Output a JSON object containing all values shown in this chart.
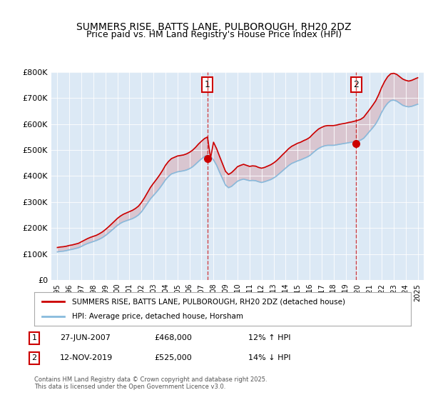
{
  "title": "SUMMERS RISE, BATTS LANE, PULBOROUGH, RH20 2DZ",
  "subtitle": "Price paid vs. HM Land Registry's House Price Index (HPI)",
  "bg_color": "#dce9f5",
  "plot_bg_color": "#dce9f5",
  "line1_color": "#cc0000",
  "line2_color": "#88bbdd",
  "ylim": [
    0,
    800000
  ],
  "yticks": [
    0,
    100000,
    200000,
    300000,
    400000,
    500000,
    600000,
    700000,
    800000
  ],
  "ytick_labels": [
    "£0",
    "£100K",
    "£200K",
    "£300K",
    "£400K",
    "£500K",
    "£600K",
    "£700K",
    "£800K"
  ],
  "xlabel_years": [
    "1995",
    "1996",
    "1997",
    "1998",
    "1999",
    "2000",
    "2001",
    "2002",
    "2003",
    "2004",
    "2005",
    "2006",
    "2007",
    "2008",
    "2009",
    "2010",
    "2011",
    "2012",
    "2013",
    "2014",
    "2015",
    "2016",
    "2017",
    "2018",
    "2019",
    "2020",
    "2021",
    "2022",
    "2023",
    "2024",
    "2025"
  ],
  "sale1_year": 2007.49,
  "sale1_price": 468000,
  "sale1_label": "1",
  "sale1_date": "27-JUN-2007",
  "sale1_hpi": "12% ↑ HPI",
  "sale2_year": 2019.87,
  "sale2_price": 525000,
  "sale2_label": "2",
  "sale2_date": "12-NOV-2019",
  "sale2_hpi": "14% ↓ HPI",
  "legend_line1": "SUMMERS RISE, BATTS LANE, PULBOROUGH, RH20 2DZ (detached house)",
  "legend_line2": "HPI: Average price, detached house, Horsham",
  "footer": "Contains HM Land Registry data © Crown copyright and database right 2025.\nThis data is licensed under the Open Government Licence v3.0.",
  "hpi_data": {
    "years": [
      1995.0,
      1995.25,
      1995.5,
      1995.75,
      1996.0,
      1996.25,
      1996.5,
      1996.75,
      1997.0,
      1997.25,
      1997.5,
      1997.75,
      1998.0,
      1998.25,
      1998.5,
      1998.75,
      1999.0,
      1999.25,
      1999.5,
      1999.75,
      2000.0,
      2000.25,
      2000.5,
      2000.75,
      2001.0,
      2001.25,
      2001.5,
      2001.75,
      2002.0,
      2002.25,
      2002.5,
      2002.75,
      2003.0,
      2003.25,
      2003.5,
      2003.75,
      2004.0,
      2004.25,
      2004.5,
      2004.75,
      2005.0,
      2005.25,
      2005.5,
      2005.75,
      2006.0,
      2006.25,
      2006.5,
      2006.75,
      2007.0,
      2007.25,
      2007.5,
      2007.75,
      2008.0,
      2008.25,
      2008.5,
      2008.75,
      2009.0,
      2009.25,
      2009.5,
      2009.75,
      2010.0,
      2010.25,
      2010.5,
      2010.75,
      2011.0,
      2011.25,
      2011.5,
      2011.75,
      2012.0,
      2012.25,
      2012.5,
      2012.75,
      2013.0,
      2013.25,
      2013.5,
      2013.75,
      2014.0,
      2014.25,
      2014.5,
      2014.75,
      2015.0,
      2015.25,
      2015.5,
      2015.75,
      2016.0,
      2016.25,
      2016.5,
      2016.75,
      2017.0,
      2017.25,
      2017.5,
      2017.75,
      2018.0,
      2018.25,
      2018.5,
      2018.75,
      2019.0,
      2019.25,
      2019.5,
      2019.75,
      2020.0,
      2020.25,
      2020.5,
      2020.75,
      2021.0,
      2021.25,
      2021.5,
      2021.75,
      2022.0,
      2022.25,
      2022.5,
      2022.75,
      2023.0,
      2023.25,
      2023.5,
      2023.75,
      2024.0,
      2024.25,
      2024.5,
      2024.75,
      2025.0
    ],
    "hpi_values": [
      108000,
      110000,
      111000,
      113000,
      116000,
      118000,
      121000,
      124000,
      129000,
      135000,
      140000,
      144000,
      148000,
      152000,
      157000,
      163000,
      171000,
      180000,
      190000,
      200000,
      210000,
      218000,
      224000,
      228000,
      232000,
      236000,
      242000,
      250000,
      262000,
      278000,
      295000,
      312000,
      325000,
      338000,
      352000,
      368000,
      385000,
      398000,
      408000,
      412000,
      416000,
      418000,
      420000,
      423000,
      428000,
      435000,
      445000,
      456000,
      466000,
      475000,
      480000,
      475000,
      462000,
      442000,
      415000,
      390000,
      365000,
      355000,
      360000,
      370000,
      380000,
      385000,
      388000,
      385000,
      382000,
      383000,
      382000,
      378000,
      375000,
      378000,
      382000,
      386000,
      392000,
      400000,
      410000,
      420000,
      430000,
      440000,
      448000,
      453000,
      458000,
      462000,
      467000,
      472000,
      478000,
      488000,
      498000,
      506000,
      512000,
      516000,
      518000,
      518000,
      518000,
      520000,
      522000,
      524000,
      526000,
      528000,
      530000,
      532000,
      534000,
      538000,
      545000,
      558000,
      572000,
      585000,
      600000,
      620000,
      645000,
      665000,
      680000,
      690000,
      692000,
      688000,
      680000,
      672000,
      668000,
      666000,
      668000,
      672000,
      676000
    ],
    "property_values": [
      125000,
      127000,
      128000,
      130000,
      133000,
      135000,
      138000,
      141000,
      147000,
      153000,
      159000,
      164000,
      168000,
      172000,
      178000,
      185000,
      194000,
      204000,
      215000,
      226000,
      237000,
      246000,
      253000,
      258000,
      263000,
      268000,
      275000,
      284000,
      298000,
      316000,
      336000,
      356000,
      372000,
      387000,
      403000,
      421000,
      441000,
      456000,
      467000,
      472000,
      477000,
      479000,
      481000,
      485000,
      491000,
      499000,
      510000,
      523000,
      534000,
      544000,
      550000,
      468000,
      530000,
      506000,
      476000,
      447000,
      418000,
      406000,
      413000,
      424000,
      436000,
      441000,
      445000,
      441000,
      437000,
      439000,
      438000,
      433000,
      430000,
      433000,
      438000,
      443000,
      450000,
      459000,
      470000,
      482000,
      493000,
      505000,
      514000,
      520000,
      526000,
      530000,
      536000,
      541000,
      548000,
      560000,
      571000,
      581000,
      587000,
      592000,
      594000,
      594000,
      594000,
      596000,
      599000,
      601000,
      603000,
      606000,
      608000,
      611000,
      614000,
      618000,
      626000,
      641000,
      656000,
      672000,
      689000,
      713000,
      741000,
      764000,
      782000,
      793000,
      795000,
      791000,
      782000,
      773000,
      768000,
      765000,
      768000,
      773000,
      778000
    ]
  }
}
